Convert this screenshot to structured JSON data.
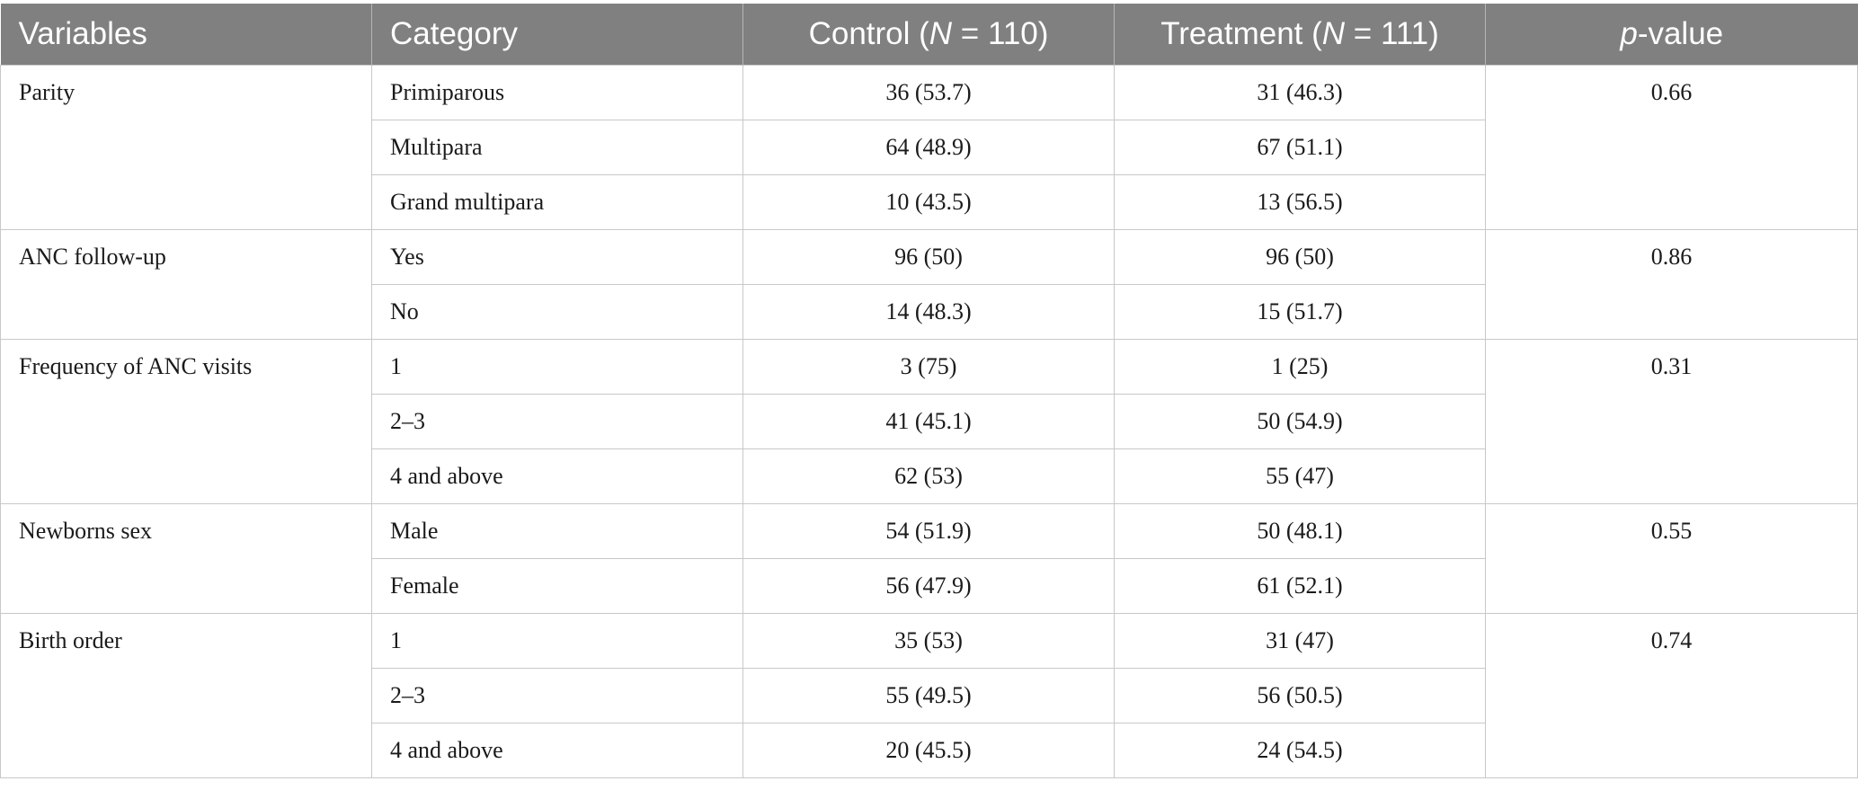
{
  "header": {
    "variables": "Variables",
    "category": "Category",
    "control_prefix": "Control (",
    "control_n_symbol": "N",
    "control_suffix": " = 110)",
    "treatment_prefix": "Treatment (",
    "treatment_n_symbol": "N",
    "treatment_suffix": " = 111)",
    "pvalue_symbol": "p",
    "pvalue_suffix": "-value"
  },
  "groups": [
    {
      "variable": "Parity",
      "p_value": "0.66",
      "rows": [
        {
          "category": "Primiparous",
          "control": "36 (53.7)",
          "treatment": "31 (46.3)"
        },
        {
          "category": "Multipara",
          "control": "64 (48.9)",
          "treatment": "67 (51.1)"
        },
        {
          "category": "Grand multipara",
          "control": "10 (43.5)",
          "treatment": "13 (56.5)"
        }
      ]
    },
    {
      "variable": "ANC follow-up",
      "p_value": "0.86",
      "rows": [
        {
          "category": "Yes",
          "control": "96 (50)",
          "treatment": "96 (50)"
        },
        {
          "category": "No",
          "control": "14 (48.3)",
          "treatment": "15 (51.7)"
        }
      ]
    },
    {
      "variable": "Frequency of ANC visits",
      "p_value": "0.31",
      "rows": [
        {
          "category": "1",
          "control": "3 (75)",
          "treatment": "1 (25)"
        },
        {
          "category": "2–3",
          "control": "41 (45.1)",
          "treatment": "50 (54.9)"
        },
        {
          "category": "4 and above",
          "control": "62 (53)",
          "treatment": "55 (47)"
        }
      ]
    },
    {
      "variable": "Newborns sex",
      "p_value": "0.55",
      "rows": [
        {
          "category": "Male",
          "control": "54 (51.9)",
          "treatment": "50 (48.1)"
        },
        {
          "category": "Female",
          "control": "56 (47.9)",
          "treatment": "61 (52.1)"
        }
      ]
    },
    {
      "variable": "Birth order",
      "p_value": "0.74",
      "rows": [
        {
          "category": "1",
          "control": "35 (53)",
          "treatment": "31 (47)"
        },
        {
          "category": "2–3",
          "control": "55 (49.5)",
          "treatment": "56 (50.5)"
        },
        {
          "category": "4 and above",
          "control": "20 (45.5)",
          "treatment": "24 (54.5)"
        }
      ]
    }
  ]
}
